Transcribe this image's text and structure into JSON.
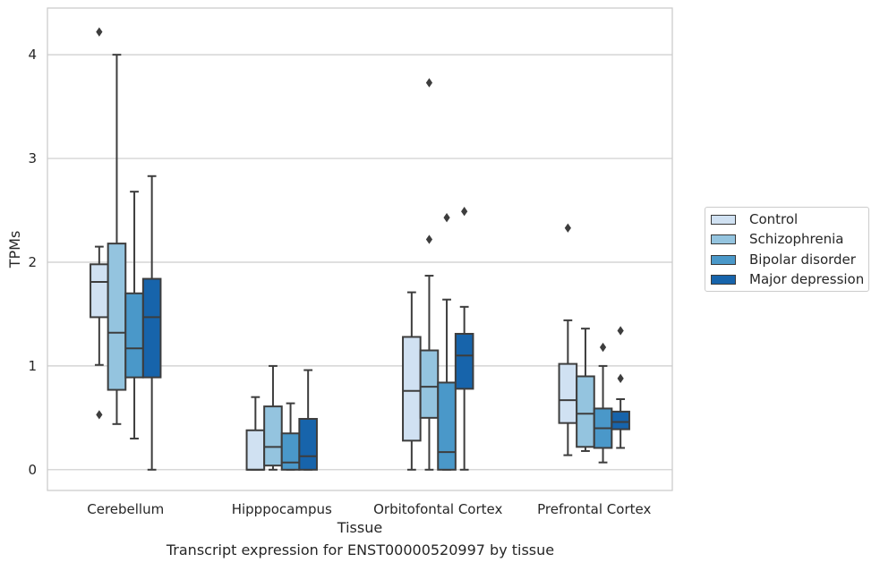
{
  "chart_data": {
    "type": "boxplot",
    "title": "",
    "caption": "Transcript expression for ENST00000520997 by tissue",
    "xlabel": "Tissue",
    "ylabel": "TPMs",
    "ylim": [
      -0.2,
      4.45
    ],
    "yticks": [
      0,
      1,
      2,
      3,
      4
    ],
    "grid": "horizontal",
    "legend_position": "right",
    "categories": [
      "Cerebellum",
      "Hipppocampus",
      "Orbitofontal Cortex",
      "Prefrontal Cortex"
    ],
    "series": [
      {
        "name": "Control",
        "color": "#d0e1f2",
        "boxes": [
          {
            "whisker_low": 1.01,
            "q1": 1.47,
            "median": 1.81,
            "q3": 1.98,
            "whisker_high": 2.15,
            "outliers": [
              4.22,
              0.53
            ]
          },
          {
            "whisker_low": 0.0,
            "q1": 0.0,
            "median": 0.0,
            "q3": 0.38,
            "whisker_high": 0.7,
            "outliers": []
          },
          {
            "whisker_low": 0.0,
            "q1": 0.28,
            "median": 0.76,
            "q3": 1.28,
            "whisker_high": 1.71,
            "outliers": []
          },
          {
            "whisker_low": 0.14,
            "q1": 0.45,
            "median": 0.67,
            "q3": 1.02,
            "whisker_high": 1.44,
            "outliers": [
              2.33
            ]
          }
        ]
      },
      {
        "name": "Schizophrenia",
        "color": "#94c4df",
        "boxes": [
          {
            "whisker_low": 0.44,
            "q1": 0.77,
            "median": 1.32,
            "q3": 2.18,
            "whisker_high": 4.0,
            "outliers": []
          },
          {
            "whisker_low": 0.0,
            "q1": 0.04,
            "median": 0.22,
            "q3": 0.61,
            "whisker_high": 1.0,
            "outliers": []
          },
          {
            "whisker_low": 0.0,
            "q1": 0.5,
            "median": 0.8,
            "q3": 1.15,
            "whisker_high": 1.87,
            "outliers": [
              3.73,
              2.22
            ]
          },
          {
            "whisker_low": 0.18,
            "q1": 0.22,
            "median": 0.54,
            "q3": 0.9,
            "whisker_high": 1.36,
            "outliers": []
          }
        ]
      },
      {
        "name": "Bipolar disorder",
        "color": "#4a98c9",
        "boxes": [
          {
            "whisker_low": 0.3,
            "q1": 0.89,
            "median": 1.17,
            "q3": 1.7,
            "whisker_high": 2.68,
            "outliers": []
          },
          {
            "whisker_low": 0.0,
            "q1": 0.0,
            "median": 0.07,
            "q3": 0.35,
            "whisker_high": 0.64,
            "outliers": []
          },
          {
            "whisker_low": 0.0,
            "q1": 0.0,
            "median": 0.17,
            "q3": 0.84,
            "whisker_high": 1.64,
            "outliers": [
              2.43
            ]
          },
          {
            "whisker_low": 0.07,
            "q1": 0.21,
            "median": 0.4,
            "q3": 0.59,
            "whisker_high": 1.0,
            "outliers": [
              1.18
            ]
          }
        ]
      },
      {
        "name": "Major depression",
        "color": "#1764ab",
        "boxes": [
          {
            "whisker_low": 0.0,
            "q1": 0.89,
            "median": 1.47,
            "q3": 1.84,
            "whisker_high": 2.83,
            "outliers": []
          },
          {
            "whisker_low": 0.0,
            "q1": 0.0,
            "median": 0.13,
            "q3": 0.49,
            "whisker_high": 0.96,
            "outliers": []
          },
          {
            "whisker_low": 0.0,
            "q1": 0.78,
            "median": 1.1,
            "q3": 1.31,
            "whisker_high": 1.57,
            "outliers": [
              2.49
            ]
          },
          {
            "whisker_low": 0.21,
            "q1": 0.39,
            "median": 0.46,
            "q3": 0.56,
            "whisker_high": 0.68,
            "outliers": [
              1.34,
              0.88
            ]
          }
        ]
      }
    ]
  }
}
